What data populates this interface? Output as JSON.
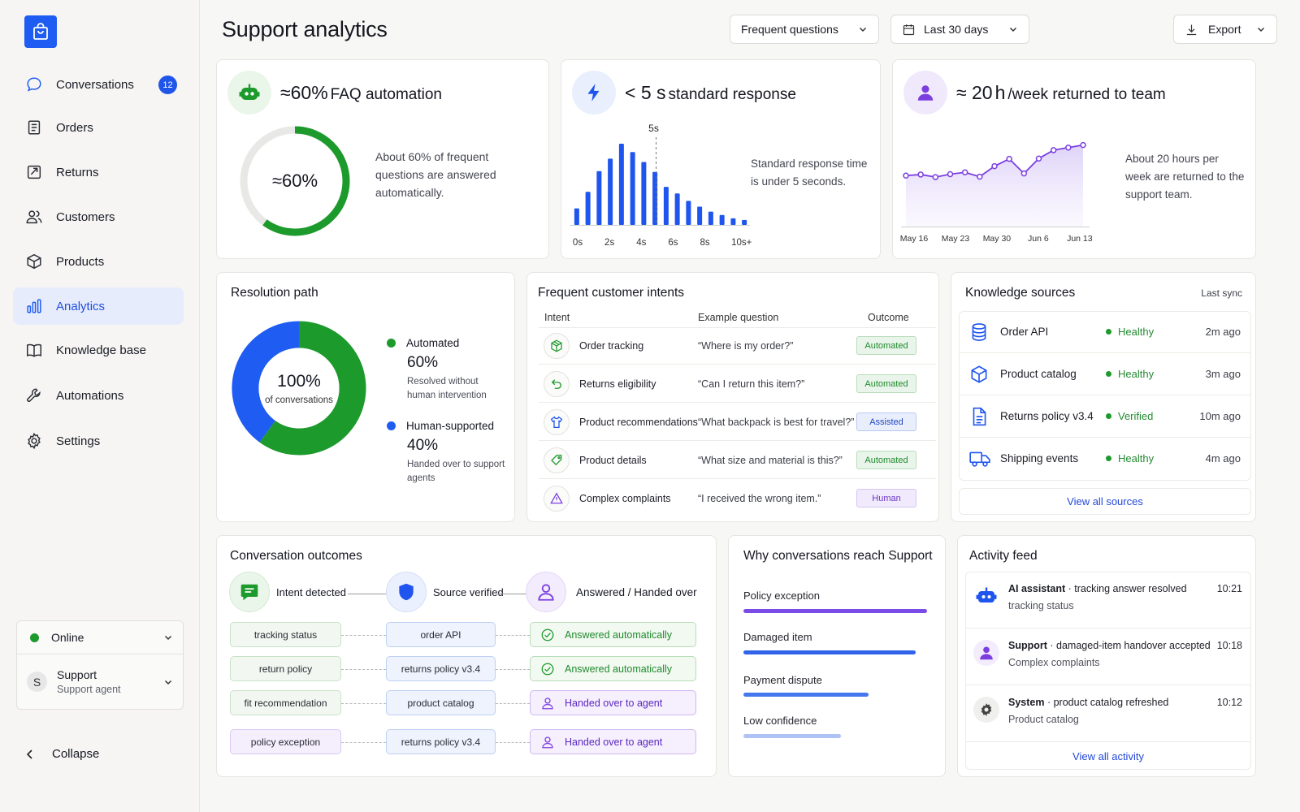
{
  "colors": {
    "accent": "#1f5cf2",
    "green": "#1d9a2c",
    "blue": "#1f55ee",
    "purple": "#7b3fe0"
  },
  "sidebar": {
    "items": [
      {
        "label": "Conversations",
        "icon": "chat-bubble-icon",
        "badge": "12"
      },
      {
        "label": "Orders",
        "icon": "clipboard-icon"
      },
      {
        "label": "Returns",
        "icon": "return-arrows-icon"
      },
      {
        "label": "Customers",
        "icon": "users-icon"
      },
      {
        "label": "Products",
        "icon": "box-icon"
      },
      {
        "label": "Analytics",
        "icon": "bar-chart-icon",
        "active": true
      },
      {
        "label": "Knowledge base",
        "icon": "book-icon"
      },
      {
        "label": "Automations",
        "icon": "wrench-icon"
      },
      {
        "label": "Settings",
        "icon": "gear-icon"
      }
    ],
    "status": "Online",
    "user": {
      "initial": "S",
      "name": "Support",
      "role": "Support agent"
    },
    "collapse": "Collapse"
  },
  "header": {
    "title": "Support analytics",
    "filter": "Frequent questions",
    "range": "Last 30 days",
    "export": "Export"
  },
  "kpis": {
    "faq": {
      "prefix": "≈60%",
      "title": "FAQ automation",
      "center": "≈60%",
      "desc": "About 60% of frequent questions are answered automatically.",
      "value": 0.6
    },
    "response": {
      "prefix": "< 5 s",
      "title": "standard response",
      "marker": "5s",
      "desc": "Standard response time is under 5 seconds.",
      "xticks": [
        "0s",
        "2s",
        "4s",
        "6s",
        "8s",
        "10s+"
      ]
    },
    "returned": {
      "prefix": "≈ 20",
      "unit": "h",
      "title": "/week returned to team",
      "desc": "About 20 hours per week are returned to the support team.",
      "xticks": [
        "May 16",
        "May 23",
        "May 30",
        "Jun 6",
        "Jun 13"
      ]
    }
  },
  "chart_data": [
    {
      "type": "bar",
      "title": "< 5 s standard response",
      "x": [
        "0s",
        "",
        "2s",
        "",
        "4s",
        "",
        "6s",
        "",
        "8s",
        "",
        "10s+"
      ],
      "categories": [
        "0",
        "0.75",
        "1.5",
        "2.25",
        "3",
        "3.75",
        "4.5",
        "5.25",
        "6",
        "6.75",
        "7.5",
        "8.25",
        "9",
        "9.75",
        "10.5",
        "11.25"
      ],
      "values": [
        2,
        4,
        6.5,
        8,
        9.8,
        8.8,
        7.6,
        6.4,
        4.6,
        3.8,
        2.9,
        2.2,
        1.6,
        1.2,
        0.8,
        0.6
      ],
      "ylim": [
        0,
        10
      ],
      "marker": "5s"
    },
    {
      "type": "area",
      "title": "≈ 20 h/week returned to team",
      "xticks": [
        "May 16",
        "May 23",
        "May 30",
        "Jun 6",
        "Jun 13"
      ],
      "values": [
        14,
        14.3,
        13.6,
        14.4,
        14.9,
        13.7,
        16.6,
        18.6,
        14.6,
        18.7,
        21,
        21.7,
        22.4
      ],
      "ylim": [
        0,
        25
      ]
    },
    {
      "type": "pie",
      "title": "Resolution path",
      "center": "100%",
      "center_sub": "of conversations",
      "series": [
        {
          "name": "Automated",
          "value": 60,
          "color": "#1d9a2c"
        },
        {
          "name": "Human-supported",
          "value": 40,
          "color": "#1f5cf2"
        }
      ]
    }
  ],
  "resolution": {
    "title": "Resolution path",
    "center": "100%",
    "center_sub": "of conversations",
    "legend": [
      {
        "name": "Automated",
        "value": "60%",
        "desc": "Resolved without human intervention"
      },
      {
        "name": "Human-supported",
        "value": "40%",
        "desc": "Handed over to support agents"
      }
    ]
  },
  "intents": {
    "title": "Frequent customer intents",
    "headers": [
      "Intent",
      "Example question",
      "Outcome"
    ],
    "rows": [
      {
        "intent": "Order tracking",
        "question": "“Where is my order?”",
        "outcome": "Automated",
        "kind": "auto",
        "icon": "package-icon"
      },
      {
        "intent": "Returns eligibility",
        "question": "“Can I return this item?”",
        "outcome": "Automated",
        "kind": "auto",
        "icon": "return-icon"
      },
      {
        "intent": "Product recommendations",
        "question": "“What backpack is best for travel?”",
        "outcome": "Assisted",
        "kind": "assist",
        "icon": "shirt-icon"
      },
      {
        "intent": "Product details",
        "question": "“What size and material is this?”",
        "outcome": "Automated",
        "kind": "auto",
        "icon": "tag-icon"
      },
      {
        "intent": "Complex complaints",
        "question": "“I received the wrong item.”",
        "outcome": "Human",
        "kind": "human",
        "icon": "warning-icon"
      }
    ]
  },
  "knowledge": {
    "title": "Knowledge sources",
    "last_sync": "Last sync",
    "rows": [
      {
        "name": "Order API",
        "status": "Healthy",
        "time": "2m ago",
        "icon": "database-icon"
      },
      {
        "name": "Product catalog",
        "status": "Healthy",
        "time": "3m ago",
        "icon": "cube-icon"
      },
      {
        "name": "Returns policy v3.4",
        "status": "Verified",
        "time": "10m ago",
        "icon": "document-icon"
      },
      {
        "name": "Shipping events",
        "status": "Healthy",
        "time": "4m ago",
        "icon": "truck-icon"
      }
    ],
    "link": "View all sources"
  },
  "outcomes": {
    "title": "Conversation outcomes",
    "stages": [
      "Intent detected",
      "Source verified",
      "Answered / Handed over"
    ],
    "rows": [
      {
        "intent": "tracking status",
        "source": "order API",
        "result": "Answered automatically",
        "kind": "ok"
      },
      {
        "intent": "return policy",
        "source": "returns policy v3.4",
        "result": "Answered automatically",
        "kind": "ok"
      },
      {
        "intent": "fit recommendation",
        "source": "product catalog",
        "result": "Handed over to agent",
        "kind": "hand"
      },
      {
        "intent": "policy exception",
        "source": "returns policy v3.4",
        "result": "Handed over to agent",
        "kind": "hand"
      }
    ]
  },
  "reasons": {
    "title": "Why conversations reach Support",
    "items": [
      {
        "label": "Policy exception",
        "value": 1.0,
        "color": "#7b4be8"
      },
      {
        "label": "Damaged item",
        "value": 0.94,
        "color": "#2f63ea"
      },
      {
        "label": "Payment dispute",
        "value": 0.68,
        "color": "#4677ee"
      },
      {
        "label": "Low confidence",
        "value": 0.53,
        "color": "#aec2f5"
      }
    ]
  },
  "activity": {
    "title": "Activity feed",
    "rows": [
      {
        "who": "AI assistant",
        "what": "tracking answer resolved",
        "sub": "tracking status",
        "time": "10:21",
        "icon": "robot-icon"
      },
      {
        "who": "Support",
        "what": "damaged-item handover accepted",
        "sub": "Complex complaints",
        "time": "10:18",
        "icon": "person-icon"
      },
      {
        "who": "System",
        "what": "product catalog refreshed",
        "sub": "Product catalog",
        "time": "10:12",
        "icon": "gear-icon"
      }
    ],
    "link": "View all activity"
  }
}
